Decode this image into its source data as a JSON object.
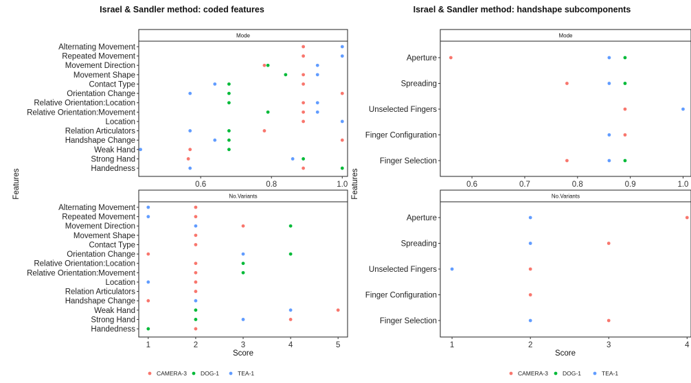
{
  "legend": [
    {
      "name": "CAMERA-3",
      "color": "#F8766D"
    },
    {
      "name": "DOG-1",
      "color": "#00BA38"
    },
    {
      "name": "TEA-1",
      "color": "#619CFF"
    }
  ],
  "chart_data": [
    {
      "type": "scatter",
      "title": "Israel & Sandler method: coded features",
      "xlabel": "Score",
      "ylabel": "Features",
      "features": [
        "Alternating Movement",
        "Repeated Movement",
        "Movement Direction",
        "Movement Shape",
        "Contact Type",
        "Orientation Change",
        "Relative Orientation:Location",
        "Relative Orientation:Movement",
        "Location",
        "Relation Articulators",
        "Handshape Change",
        "Weak Hand",
        "Strong Hand",
        "Handedness"
      ],
      "facets": [
        {
          "strip": "Mode",
          "xlim": [
            0.425,
            1.015
          ],
          "xticks": [
            0.6,
            0.8,
            1.0
          ],
          "xtick_labels": [
            "0.6",
            "0.8",
            "1.0"
          ],
          "series": [
            {
              "name": "CAMERA-3",
              "values": [
                0.89,
                0.89,
                0.78,
                0.89,
                0.89,
                1.0,
                0.89,
                0.89,
                0.89,
                0.78,
                1.0,
                0.57,
                0.565,
                0.89
              ]
            },
            {
              "name": "DOG-1",
              "values": [
                null,
                null,
                0.79,
                0.84,
                0.68,
                0.68,
                0.68,
                0.79,
                null,
                0.68,
                0.68,
                0.68,
                0.89,
                1.0
              ]
            },
            {
              "name": "TEA-1",
              "values": [
                1.0,
                1.0,
                0.93,
                0.93,
                0.64,
                0.57,
                0.93,
                0.93,
                1.0,
                0.57,
                0.64,
                0.43,
                0.86,
                0.57
              ]
            }
          ]
        },
        {
          "strip": "No.Variants",
          "xlim": [
            0.8,
            5.2
          ],
          "xticks": [
            1,
            2,
            3,
            4,
            5
          ],
          "xtick_labels": [
            "1",
            "2",
            "3",
            "4",
            "5"
          ],
          "series": [
            {
              "name": "CAMERA-3",
              "values": [
                2,
                2,
                3,
                2,
                2,
                1,
                2,
                2,
                2,
                2,
                1,
                5,
                4,
                2
              ]
            },
            {
              "name": "DOG-1",
              "values": [
                null,
                null,
                4,
                null,
                null,
                4,
                3,
                3,
                null,
                null,
                null,
                2,
                2,
                1
              ]
            },
            {
              "name": "TEA-1",
              "values": [
                1,
                1,
                2,
                null,
                null,
                3,
                null,
                null,
                1,
                null,
                2,
                4,
                3,
                null
              ]
            }
          ]
        }
      ]
    },
    {
      "type": "scatter",
      "title": "Israel & Sandler method: handshape subcomponents",
      "xlabel": "Score",
      "ylabel": "Features",
      "features": [
        "Aperture",
        "Spreading",
        "Unselected Fingers",
        "Finger Configuration",
        "Finger Selection"
      ],
      "facets": [
        {
          "strip": "Mode",
          "xlim": [
            0.54,
            1.015
          ],
          "xticks": [
            0.6,
            0.7,
            0.8,
            0.9,
            1.0
          ],
          "xtick_labels": [
            "0.6",
            "0.7",
            "0.8",
            "0.9",
            "1.0"
          ],
          "series": [
            {
              "name": "CAMERA-3",
              "values": [
                0.56,
                0.78,
                0.89,
                0.89,
                0.78
              ]
            },
            {
              "name": "DOG-1",
              "values": [
                0.89,
                0.89,
                null,
                null,
                0.89
              ]
            },
            {
              "name": "TEA-1",
              "values": [
                0.86,
                0.86,
                1.0,
                0.86,
                0.86
              ]
            }
          ]
        },
        {
          "strip": "No.Variants",
          "xlim": [
            0.85,
            4.05
          ],
          "xticks": [
            1,
            2,
            3,
            4
          ],
          "xtick_labels": [
            "1",
            "2",
            "3",
            "4"
          ],
          "series": [
            {
              "name": "CAMERA-3",
              "values": [
                4,
                3,
                2,
                2,
                3
              ]
            },
            {
              "name": "DOG-1",
              "values": [
                null,
                null,
                null,
                null,
                null
              ]
            },
            {
              "name": "TEA-1",
              "values": [
                2,
                2,
                1,
                null,
                2
              ]
            }
          ]
        }
      ]
    }
  ]
}
